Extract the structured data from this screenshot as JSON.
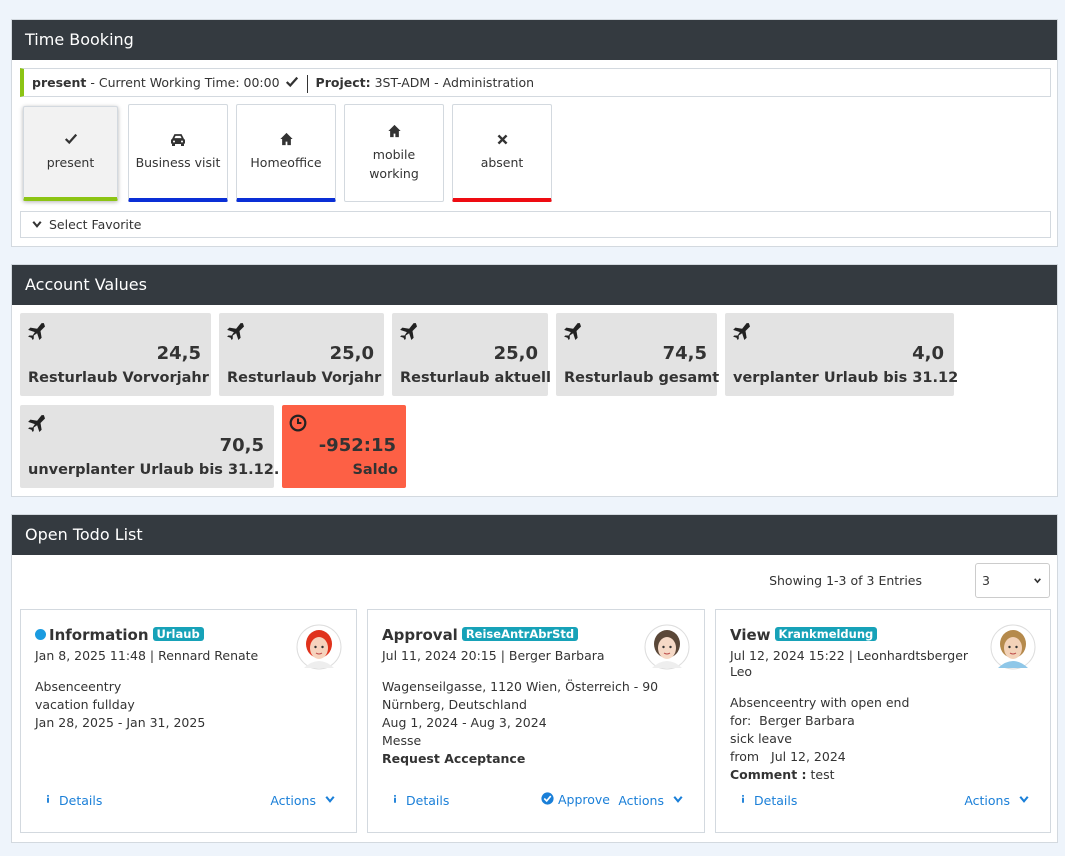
{
  "time_booking": {
    "title": "Time Booking",
    "status": {
      "state": "present",
      "working_time": "- Current Working Time: 00:00",
      "project_label": "Project:",
      "project": "3ST-ADM - Administration"
    },
    "buttons": [
      "present",
      "Business visit",
      "Homeoffice",
      "mobile working",
      "absent"
    ],
    "favorite": "Select Favorite"
  },
  "account_values": {
    "title": "Account Values",
    "tiles": [
      {
        "value": "24,5",
        "label": "Resturlaub Vorvorjahr"
      },
      {
        "value": "25,0",
        "label": "Resturlaub Vorjahr"
      },
      {
        "value": "25,0",
        "label": "Resturlaub aktuell"
      },
      {
        "value": "74,5",
        "label": "Resturlaub gesamt"
      },
      {
        "value": "4,0",
        "label": "verplanter Urlaub bis 31.12"
      },
      {
        "value": "70,5",
        "label": "unverplanter Urlaub bis 31.12."
      },
      {
        "value": "-952:15",
        "label": "Saldo"
      }
    ]
  },
  "todo_list": {
    "title": "Open Todo List",
    "showing": "Showing 1-3 of 3",
    "entries_label": "Entries",
    "entries": "3",
    "cards": [
      {
        "type": "Information",
        "tag": "Urlaub",
        "meta": "Jan 8, 2025 11:48 | Rennard Renate",
        "lines": [
          "Absenceentry",
          "vacation fullday",
          "Jan 28, 2025 - Jan 31, 2025"
        ],
        "details": "Details",
        "actions": "Actions"
      },
      {
        "type": "Approval",
        "tag": "ReiseAntrAbrStd",
        "meta": "Jul 11, 2024 20:15 | Berger Barbara",
        "lines": [
          "Wagenseilgasse, 1120 Wien, Österreich - 90 Nürnberg, Deutschland",
          "Aug 1, 2024 - Aug 3, 2024",
          "Messe"
        ],
        "emphasis": "Request Acceptance",
        "details": "Details",
        "approve": "Approve",
        "actions": "Actions"
      },
      {
        "type": "View",
        "tag": "Krankmeldung",
        "meta": "Jul 12, 2024 15:22 | Leonhardtsberger Leo",
        "lines": [
          "Absenceentry with open end",
          "for:  Berger Barbara",
          "sick leave",
          "from   Jul 12, 2024"
        ],
        "comment_label": "Comment :",
        "comment": "test",
        "details": "Details",
        "actions": "Actions"
      }
    ]
  }
}
